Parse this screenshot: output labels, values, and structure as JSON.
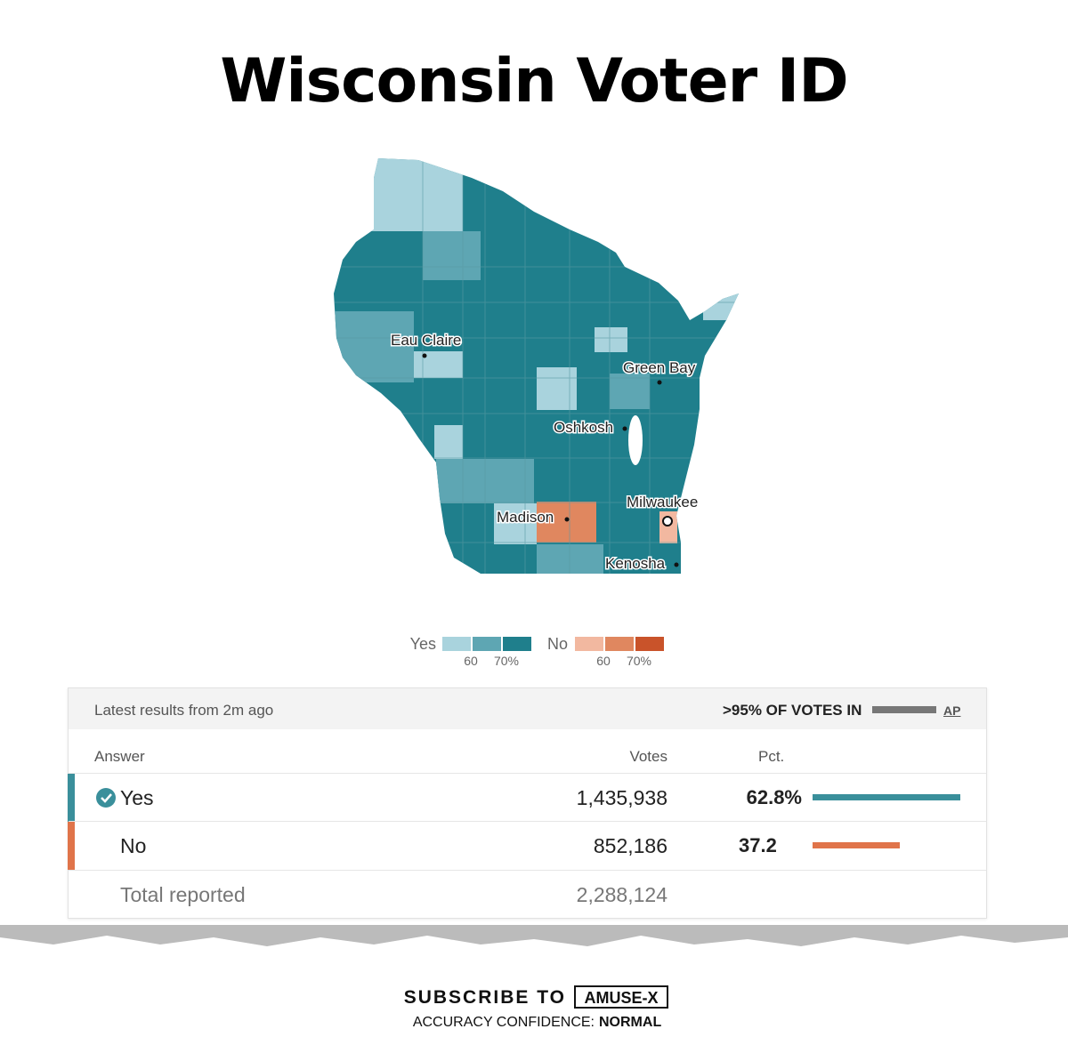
{
  "title": "Wisconsin Voter ID",
  "map": {
    "cities": [
      "Eau Claire",
      "Green Bay",
      "Oshkosh",
      "Madison",
      "Milwaukee",
      "Kenosha"
    ]
  },
  "legend": {
    "yes": "Yes",
    "yes_ticks": [
      "60",
      "70%"
    ],
    "no": "No",
    "no_ticks": [
      "60",
      "70%"
    ]
  },
  "results": {
    "updated": "Latest results from 2m ago",
    "reporting": ">95% OF VOTES IN",
    "source": "AP",
    "columns": [
      "Answer",
      "Votes",
      "Pct."
    ],
    "rows": [
      {
        "answer": "Yes",
        "votes": "1,435,938",
        "pct": 62.8,
        "pct_label": "62.8%"
      },
      {
        "answer": "No",
        "votes": "852,186",
        "pct": 37.2,
        "pct_label": "37.2"
      }
    ],
    "total": {
      "label": "Total reported",
      "votes": "2,288,124"
    }
  },
  "footer": {
    "subscribe": "SUBSCRIBE TO",
    "brand": "AMUSE-X",
    "confidence_label": "ACCURACY CONFIDENCE:",
    "confidence_value": "NORMAL"
  }
}
